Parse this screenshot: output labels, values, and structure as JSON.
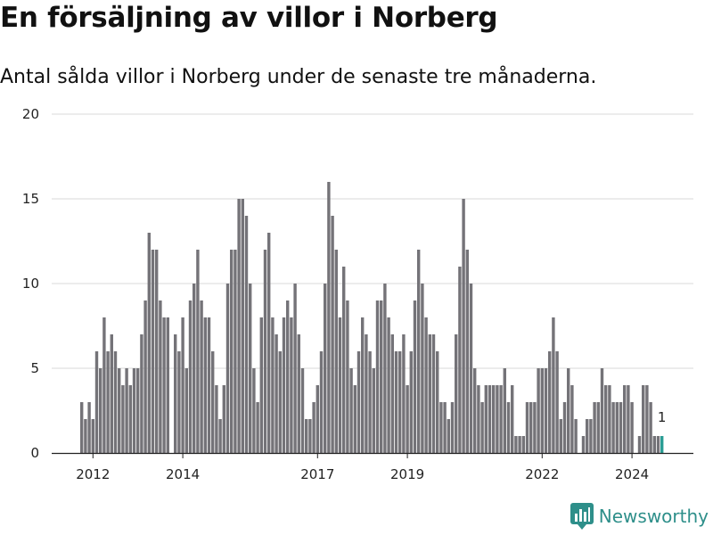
{
  "header": {
    "title": "En försäljning av villor i Norberg",
    "subtitle": "Antal sålda villor i Norberg under de senaste tre månaderna."
  },
  "brand": {
    "name": "Newsworthy",
    "logo_icon": "bar-chart-logo-icon"
  },
  "colors": {
    "bar": "#747378",
    "highlight": "#2a9d94",
    "grid": "#d9d9d9",
    "axis": "#222222"
  },
  "chart_data": {
    "type": "bar",
    "title": "En försäljning av villor i Norberg",
    "subtitle": "Antal sålda villor i Norberg under de senaste tre månaderna.",
    "xlabel": "",
    "ylabel": "",
    "ylim": [
      0,
      20
    ],
    "yticks": [
      0,
      5,
      10,
      15,
      20
    ],
    "xticks": [
      {
        "label": "2012",
        "index": 3
      },
      {
        "label": "2014",
        "index": 27
      },
      {
        "label": "2017",
        "index": 63
      },
      {
        "label": "2019",
        "index": 87
      },
      {
        "label": "2022",
        "index": 123
      },
      {
        "label": "2024",
        "index": 147
      }
    ],
    "grid": true,
    "legend": "none",
    "first_period": "2011-09",
    "period": "month",
    "values": [
      3,
      2,
      3,
      2,
      6,
      5,
      8,
      6,
      7,
      6,
      5,
      4,
      5,
      4,
      5,
      5,
      7,
      9,
      13,
      12,
      12,
      9,
      8,
      8,
      0,
      7,
      6,
      8,
      5,
      9,
      10,
      12,
      9,
      8,
      8,
      6,
      4,
      2,
      4,
      10,
      12,
      12,
      15,
      15,
      14,
      10,
      5,
      3,
      8,
      12,
      13,
      8,
      7,
      6,
      8,
      9,
      8,
      10,
      7,
      5,
      2,
      2,
      3,
      4,
      6,
      10,
      16,
      14,
      12,
      8,
      11,
      9,
      5,
      4,
      6,
      8,
      7,
      6,
      5,
      9,
      9,
      10,
      8,
      7,
      6,
      6,
      7,
      4,
      6,
      9,
      12,
      10,
      8,
      7,
      7,
      6,
      3,
      3,
      2,
      3,
      7,
      11,
      15,
      12,
      10,
      5,
      4,
      3,
      4,
      4,
      4,
      4,
      4,
      5,
      3,
      4,
      1,
      1,
      1,
      3,
      3,
      3,
      5,
      5,
      5,
      6,
      8,
      6,
      2,
      3,
      5,
      4,
      2,
      0,
      1,
      2,
      2,
      3,
      3,
      5,
      4,
      4,
      3,
      3,
      3,
      4,
      4,
      3,
      0,
      1,
      4,
      4,
      3,
      1,
      1,
      1
    ],
    "highlight_last": true,
    "annotations": [
      {
        "index": 155,
        "text": "1"
      }
    ]
  }
}
